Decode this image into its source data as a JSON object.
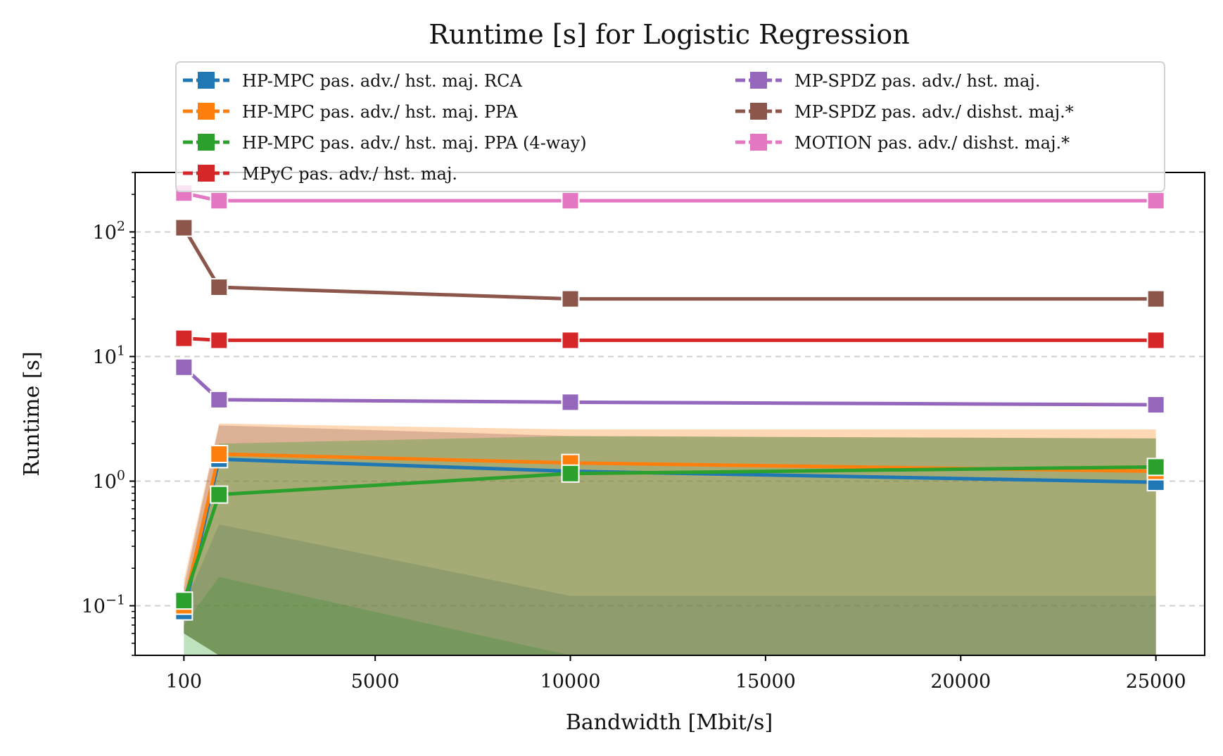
{
  "chart_data": {
    "type": "line",
    "title": "Runtime [s] for Logistic Regression",
    "xlabel": "Bandwidth [Mbit/s]",
    "ylabel": "Runtime [s]",
    "x": [
      100,
      1000,
      10000,
      25000
    ],
    "x_ticks": [
      "100",
      "5000",
      "10000",
      "15000",
      "20000",
      "25000"
    ],
    "x_tick_values": [
      100,
      5000,
      10000,
      15000,
      20000,
      25000
    ],
    "xlim": [
      -1150,
      26250
    ],
    "ylim": [
      0.04,
      300
    ],
    "y_scale": "log",
    "y_ticks": [
      {
        "value": 0.1,
        "base": "10",
        "exp": "−1"
      },
      {
        "value": 1,
        "base": "10",
        "exp": "0"
      },
      {
        "value": 10,
        "base": "10",
        "exp": "1"
      },
      {
        "value": 100,
        "base": "10",
        "exp": "2"
      }
    ],
    "grid": "horizontal dashed",
    "legend_placement": "top-center",
    "series": [
      {
        "name": "HP-MPC pas. adv./ hst. maj. RCA",
        "color": "#1f77b4",
        "values": [
          0.09,
          1.5,
          1.2,
          0.98
        ]
      },
      {
        "name": "HP-MPC pas. adv./ hst. maj. PPA",
        "color": "#ff7f0e",
        "values": [
          0.1,
          1.65,
          1.4,
          1.2
        ]
      },
      {
        "name": "HP-MPC pas. adv./ hst. maj. PPA (4-way)",
        "color": "#2ca02c",
        "values": [
          0.11,
          0.78,
          1.15,
          1.3
        ]
      },
      {
        "name": "MPyC pas. adv./ hst. maj.",
        "color": "#d62728",
        "values": [
          14,
          13.5,
          13.5,
          13.5
        ]
      },
      {
        "name": "MP-SPDZ pas. adv./ hst. maj.",
        "color": "#9467bd",
        "values": [
          8.2,
          4.5,
          4.3,
          4.1
        ]
      },
      {
        "name": "MP-SPDZ pas. adv./ dishst. maj.*",
        "color": "#8c564b",
        "values": [
          108,
          36,
          29,
          29
        ]
      },
      {
        "name": "MOTION pas. adv./ dishst. maj.*",
        "color": "#e377c2",
        "values": [
          205,
          178,
          178,
          178
        ]
      }
    ],
    "bands": [
      {
        "color": "#1f77b4",
        "lower": [
          0.06,
          0.04,
          0.04,
          0.04
        ],
        "upper": [
          0.1,
          0.45,
          0.12,
          0.12
        ]
      },
      {
        "color": "#ff7f0e",
        "lower": [
          0.06,
          0.04,
          0.04,
          0.04
        ],
        "upper": [
          0.16,
          2.9,
          2.6,
          2.6
        ]
      },
      {
        "color": "#2ca02c",
        "lower": [
          0.04,
          0.04,
          0.04,
          0.04
        ],
        "upper": [
          0.07,
          0.17,
          0.04,
          0.04
        ]
      },
      {
        "color": "#8c564b",
        "lower": [
          0.06,
          0.04,
          0.04,
          0.04
        ],
        "upper": [
          0.14,
          2.8,
          2.3,
          2.2
        ]
      },
      {
        "color": "#2ca02c",
        "lower": [
          0.06,
          0.04,
          0.04,
          0.04
        ],
        "upper": [
          0.09,
          2.0,
          2.3,
          2.2
        ]
      }
    ]
  }
}
